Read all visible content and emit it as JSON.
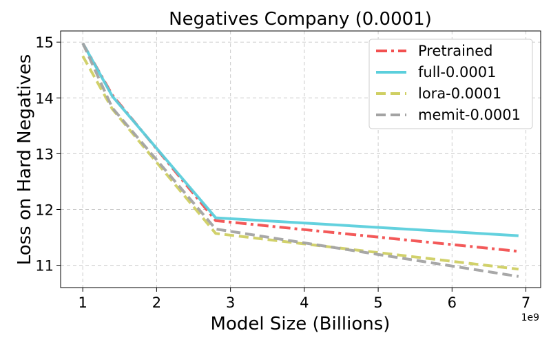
{
  "chart_data": {
    "type": "line",
    "title": "Negatives Company (0.0001)",
    "xlabel": "Model Size (Billions)",
    "ylabel": "Loss on Hard Negatives",
    "x_offset_label": "1e9",
    "xlim": [
      0.7,
      7.2
    ],
    "ylim": [
      10.6,
      15.2
    ],
    "xticks": [
      1,
      2,
      3,
      4,
      5,
      6,
      7
    ],
    "yticks": [
      11,
      12,
      13,
      14,
      15
    ],
    "x": [
      1.0,
      1.4,
      2.8,
      6.9
    ],
    "grid": true,
    "legend_position": "top-right",
    "series": [
      {
        "name": "Pretrained",
        "color": "#f25050",
        "dash": "dashdot",
        "values": [
          14.98,
          14.05,
          11.8,
          11.25
        ]
      },
      {
        "name": "full-0.0001",
        "color": "#5bcfdc",
        "dash": "solid",
        "values": [
          14.98,
          14.03,
          11.85,
          11.53
        ]
      },
      {
        "name": "lora-0.0001",
        "color": "#cfcf63",
        "dash": "dashed",
        "values": [
          14.75,
          13.8,
          11.57,
          10.93
        ]
      },
      {
        "name": "memit-0.0001",
        "color": "#a3a3a3",
        "dash": "dashed",
        "values": [
          14.98,
          13.82,
          11.65,
          10.8
        ]
      }
    ]
  }
}
